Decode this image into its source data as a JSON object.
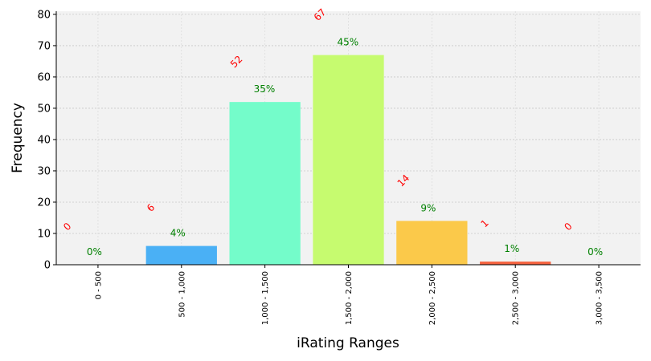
{
  "chart_data": {
    "type": "bar",
    "xlabel": "iRating Ranges",
    "ylabel": "Frequency",
    "categories": [
      "0 - 500",
      "500 - 1,000",
      "1,000 - 1,500",
      "1,500 - 2,000",
      "2,000 - 2,500",
      "2,500 - 3,000",
      "3,000 - 3,500"
    ],
    "values": [
      0,
      6,
      52,
      67,
      14,
      1,
      0
    ],
    "percent_labels": [
      "0%",
      "4%",
      "35%",
      "45%",
      "9%",
      "1%",
      "0%"
    ],
    "bar_colors": [
      "#4ab0f5",
      "#4ab0f5",
      "#74fcca",
      "#c6fb6f",
      "#fbc94a",
      "#f5623f",
      "#f5623f"
    ],
    "count_label_color": "#ff0000",
    "percent_label_color": "#008000",
    "background_color": "#f2f2f2",
    "ylim": [
      0,
      81
    ],
    "yticks": [
      0,
      10,
      20,
      30,
      40,
      50,
      60,
      70,
      80
    ],
    "grid": true
  }
}
